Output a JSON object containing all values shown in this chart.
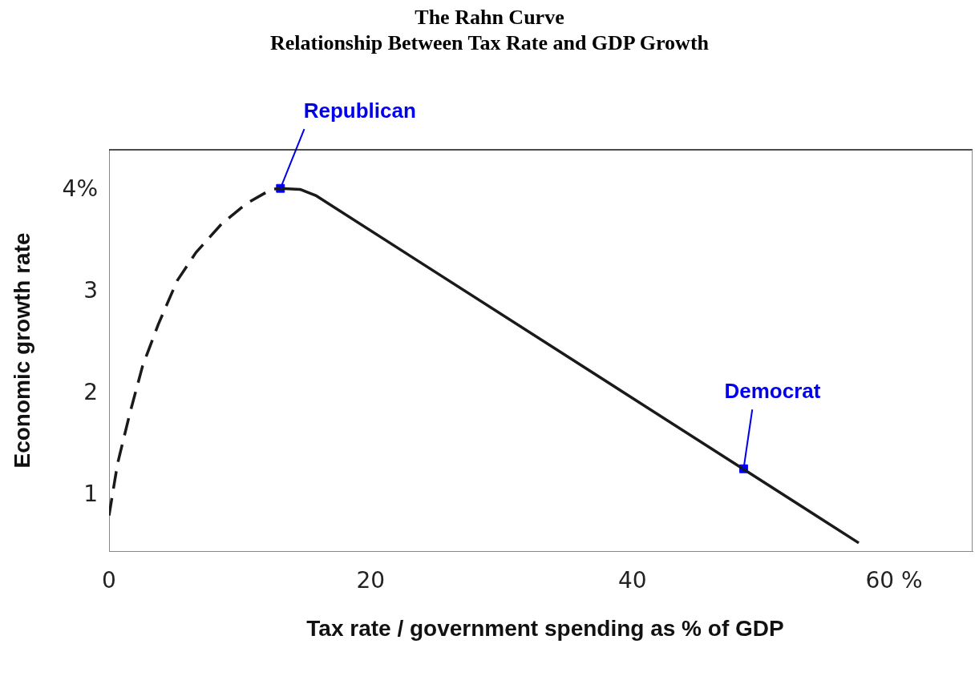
{
  "chart_data": {
    "type": "line",
    "title": "The Rahn Curve",
    "subtitle": "Relationship Between Tax Rate and GDP Growth",
    "xlabel": "Tax rate / government spending as % of GDP",
    "ylabel": "Economic growth rate",
    "xlim": [
      0,
      66
    ],
    "xticks": [
      0,
      20,
      40,
      {
        "value": 60,
        "label": "60 %"
      }
    ],
    "ylim": [
      0.45,
      4.4
    ],
    "yticks": [
      1,
      2,
      3,
      {
        "value": 4,
        "label": "4%"
      }
    ],
    "grid": false,
    "legend": false,
    "series": [
      {
        "color": "#1a1a1a",
        "line_style": "dashed",
        "marker": "none",
        "x": [
          0,
          0.65,
          1.6,
          2.56,
          3.76,
          5.2,
          6.65,
          8.6,
          10.5,
          12.4,
          13.1
        ],
        "values": [
          0.8,
          1.31,
          1.81,
          2.27,
          2.68,
          3.11,
          3.39,
          3.67,
          3.87,
          4.01,
          4.02
        ]
      },
      {
        "color": "#1a1a1a",
        "line_style": "solid",
        "marker": "none",
        "x": [
          13.1,
          14.6,
          15.8,
          57.3
        ],
        "values": [
          4.02,
          4.01,
          3.95,
          0.53
        ]
      },
      {
        "type": "scatter",
        "color": "#0000ff",
        "marker": "square",
        "x": [
          13.1,
          48.5
        ],
        "values": [
          4.02,
          1.26
        ]
      }
    ],
    "annotations": [
      {
        "text": "Republican",
        "x": 13.1,
        "y": 4.02
      },
      {
        "text": "Democrat",
        "x": 48.5,
        "y": 1.26
      }
    ]
  }
}
